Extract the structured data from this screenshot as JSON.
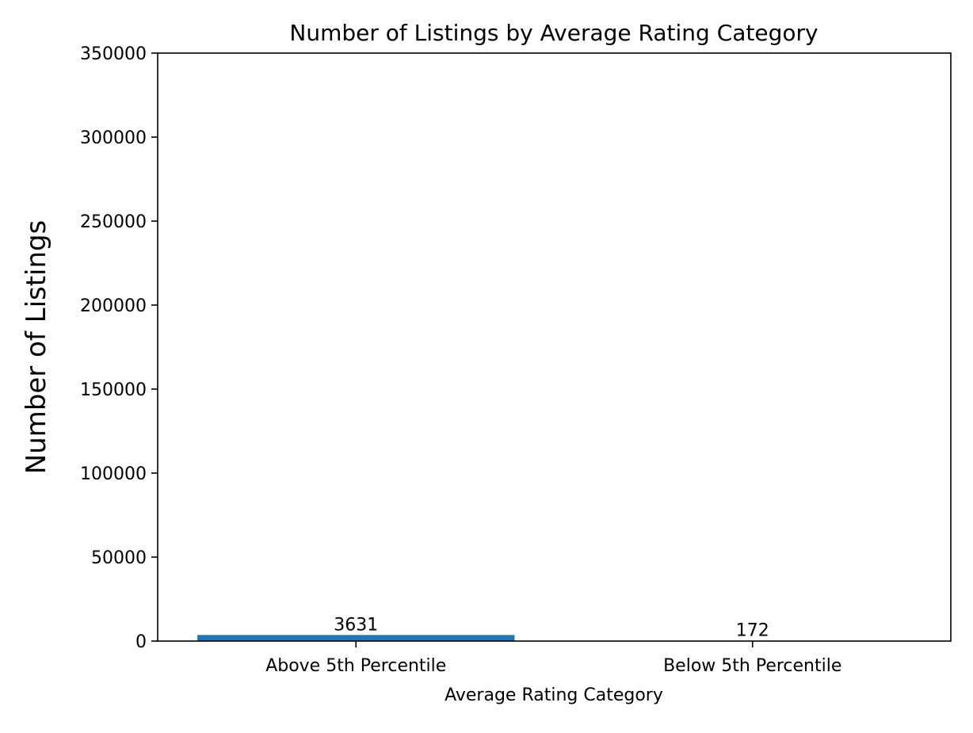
{
  "chart_data": {
    "type": "bar",
    "title": "Number of Listings by Average Rating Category",
    "xlabel": "Average Rating Category",
    "ylabel": "Number of Listings",
    "categories": [
      "Above 5th Percentile",
      "Below 5th Percentile"
    ],
    "values": [
      3631,
      172
    ],
    "value_labels": [
      "3631",
      "172"
    ],
    "ylim": [
      0,
      350000
    ],
    "yticks": [
      0,
      50000,
      100000,
      150000,
      200000,
      250000,
      300000,
      350000
    ],
    "ytick_labels": [
      "0",
      "50000",
      "100000",
      "150000",
      "200000",
      "250000",
      "300000",
      "350000"
    ],
    "grid": false,
    "legend": "none",
    "bar_color": "#1f77b4"
  }
}
